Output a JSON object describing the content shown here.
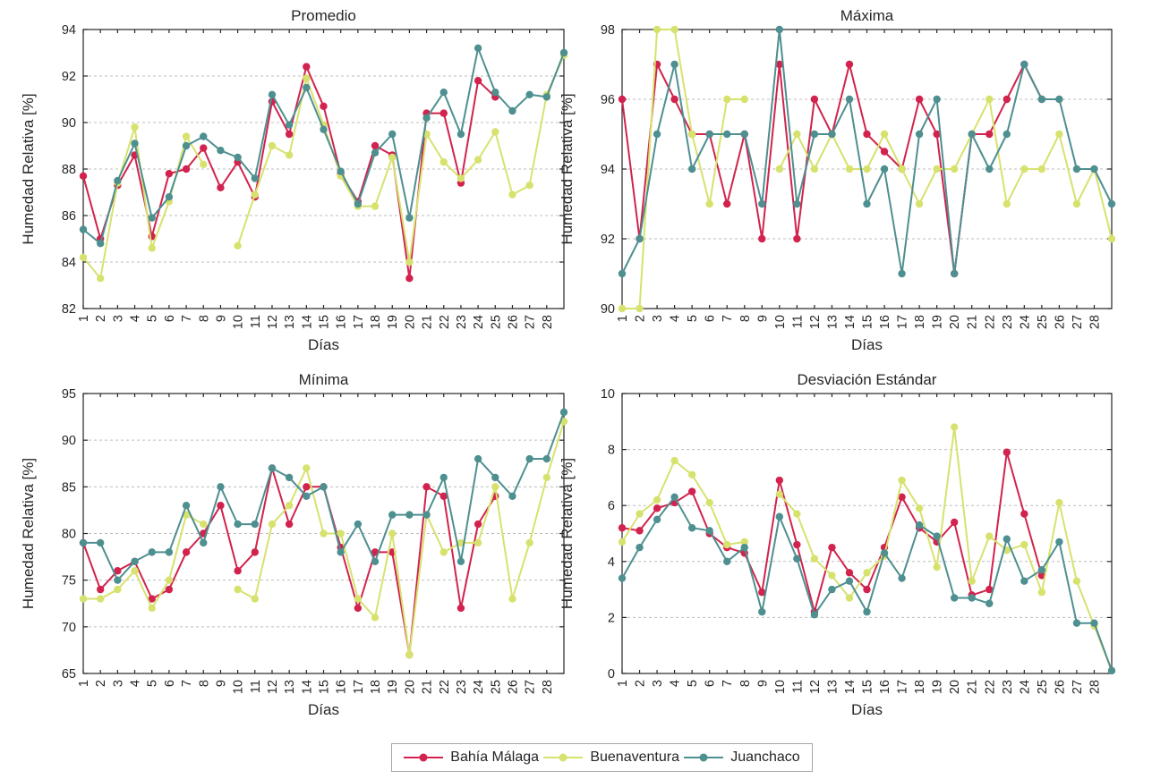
{
  "figure": {
    "background": "#ffffff"
  },
  "style": {
    "axis_color": "#262626",
    "grid_color": "#bdbdbd",
    "tick_label_color": "#262626",
    "legend_border_color": "#a6a6a6"
  },
  "legend": {
    "items": [
      {
        "label": "Bahía Málaga",
        "color": "#d1234d"
      },
      {
        "label": "Buenaventura",
        "color": "#d7e26e"
      },
      {
        "label": "Juanchaco",
        "color": "#4e8f90"
      }
    ]
  },
  "x_axis": {
    "label": "Días",
    "ticks": [
      1,
      2,
      3,
      4,
      5,
      6,
      7,
      8,
      9,
      10,
      11,
      12,
      13,
      14,
      15,
      16,
      17,
      18,
      19,
      20,
      21,
      22,
      23,
      24,
      25,
      26,
      27,
      28
    ],
    "xlim": [
      1,
      29
    ]
  },
  "chart_data": [
    {
      "id": "promedio",
      "type": "line",
      "title": "Promedio",
      "xlabel": "Días",
      "ylabel": "Humedad Relativa [%]",
      "ylim": [
        82,
        94
      ],
      "yticks": [
        82,
        84,
        86,
        88,
        90,
        92,
        94
      ],
      "grid": true,
      "series": [
        {
          "name": "Bahía Málaga",
          "values": [
            87.7,
            85.0,
            87.3,
            88.6,
            85.1,
            87.8,
            88.0,
            88.9,
            87.2,
            88.3,
            86.8,
            90.9,
            89.5,
            92.4,
            90.7,
            87.8,
            86.6,
            89.0,
            88.6,
            83.3,
            90.4,
            90.4,
            87.4,
            91.8,
            91.1,
            null,
            null,
            null,
            null
          ]
        },
        {
          "name": "Buenaventura",
          "values": [
            84.2,
            83.3,
            87.4,
            89.8,
            84.6,
            86.6,
            89.4,
            88.2,
            null,
            84.7,
            86.9,
            89.0,
            88.6,
            91.9,
            89.9,
            87.7,
            86.4,
            86.4,
            88.5,
            84.0,
            89.5,
            88.3,
            87.6,
            88.4,
            89.6,
            86.9,
            87.3,
            91.2,
            92.9
          ]
        },
        {
          "name": "Juanchaco",
          "values": [
            85.4,
            84.8,
            87.5,
            89.1,
            85.9,
            86.8,
            89.0,
            89.4,
            88.8,
            88.5,
            87.6,
            91.2,
            89.9,
            91.5,
            89.7,
            87.9,
            86.5,
            88.7,
            89.5,
            85.9,
            90.2,
            91.3,
            89.5,
            93.2,
            91.3,
            90.5,
            91.2,
            91.1,
            93.0
          ]
        }
      ]
    },
    {
      "id": "maxima",
      "type": "line",
      "title": "Máxima",
      "xlabel": "Días",
      "ylabel": "Humedad Relativa [%]",
      "ylim": [
        90,
        98
      ],
      "yticks": [
        90,
        92,
        94,
        96,
        98
      ],
      "grid": true,
      "series": [
        {
          "name": "Bahía Málaga",
          "values": [
            96,
            92,
            97,
            96,
            95,
            95,
            93,
            95,
            92,
            97,
            92,
            96,
            95,
            97,
            95,
            94.5,
            94,
            96,
            95,
            91,
            95,
            95,
            96,
            97,
            96,
            null,
            null,
            null,
            null
          ]
        },
        {
          "name": "Buenaventura",
          "values": [
            90,
            90,
            98,
            98,
            95,
            93,
            96,
            96,
            null,
            94,
            95,
            94,
            95,
            94,
            94,
            95,
            94,
            93,
            94,
            94,
            95,
            96,
            93,
            94,
            94,
            95,
            93,
            94,
            92
          ]
        },
        {
          "name": "Juanchaco",
          "values": [
            91,
            92,
            95,
            97,
            94,
            95,
            95,
            95,
            93,
            98,
            93,
            95,
            95,
            96,
            93,
            94,
            91,
            95,
            96,
            91,
            95,
            94,
            95,
            97,
            96,
            96,
            94,
            94,
            93
          ]
        }
      ]
    },
    {
      "id": "minima",
      "type": "line",
      "title": "Mínima",
      "xlabel": "Días",
      "ylabel": "Humedad Relativa [%]",
      "ylim": [
        65,
        95
      ],
      "yticks": [
        65,
        70,
        75,
        80,
        85,
        90,
        95
      ],
      "grid": true,
      "series": [
        {
          "name": "Bahía Málaga",
          "values": [
            79,
            74,
            76,
            77,
            73,
            74,
            78,
            80,
            83,
            76,
            78,
            87,
            81,
            85,
            85,
            78.5,
            72,
            78,
            78,
            67,
            85,
            84,
            72,
            81,
            84,
            null,
            null,
            null,
            null
          ]
        },
        {
          "name": "Buenaventura",
          "values": [
            73,
            73,
            74,
            76,
            72,
            75,
            82,
            81,
            null,
            74,
            73,
            81,
            83,
            87,
            80,
            80,
            73,
            71,
            80,
            67,
            82,
            78,
            79,
            79,
            85,
            73,
            79,
            86,
            92
          ]
        },
        {
          "name": "Juanchaco",
          "values": [
            79,
            79,
            75,
            77,
            78,
            78,
            83,
            79,
            85,
            81,
            81,
            87,
            86,
            84,
            85,
            78,
            81,
            77,
            82,
            82,
            82,
            86,
            77,
            88,
            86,
            84,
            88,
            88,
            93
          ]
        }
      ]
    },
    {
      "id": "desviacion-estandar",
      "type": "line",
      "title": "Desviación Estándar",
      "xlabel": "Días",
      "ylabel": "Humedad Relativa [%]",
      "ylim": [
        0,
        10
      ],
      "yticks": [
        0,
        2,
        4,
        6,
        8,
        10
      ],
      "grid": true,
      "series": [
        {
          "name": "Bahía Málaga",
          "values": [
            5.2,
            5.1,
            5.9,
            6.1,
            6.5,
            5.0,
            4.5,
            4.3,
            2.9,
            6.9,
            4.6,
            2.2,
            4.5,
            3.6,
            3.0,
            4.5,
            6.3,
            5.2,
            4.7,
            5.4,
            2.8,
            3.0,
            7.9,
            5.7,
            3.5,
            null,
            null,
            null,
            null
          ]
        },
        {
          "name": "Buenaventura",
          "values": [
            4.7,
            5.7,
            6.2,
            7.6,
            7.1,
            6.1,
            4.6,
            4.7,
            null,
            6.4,
            5.7,
            4.1,
            3.5,
            2.7,
            3.6,
            4.2,
            6.9,
            5.9,
            3.8,
            8.8,
            3.3,
            4.9,
            4.4,
            4.6,
            2.9,
            6.1,
            3.3,
            1.7,
            0.1
          ]
        },
        {
          "name": "Juanchaco",
          "values": [
            3.4,
            4.5,
            5.5,
            6.3,
            5.2,
            5.1,
            4.0,
            4.5,
            2.2,
            5.6,
            4.1,
            2.1,
            3.0,
            3.3,
            2.2,
            4.3,
            3.4,
            5.3,
            4.9,
            2.7,
            2.7,
            2.5,
            4.8,
            3.3,
            3.7,
            4.7,
            1.8,
            1.8,
            0.1
          ]
        }
      ]
    }
  ]
}
